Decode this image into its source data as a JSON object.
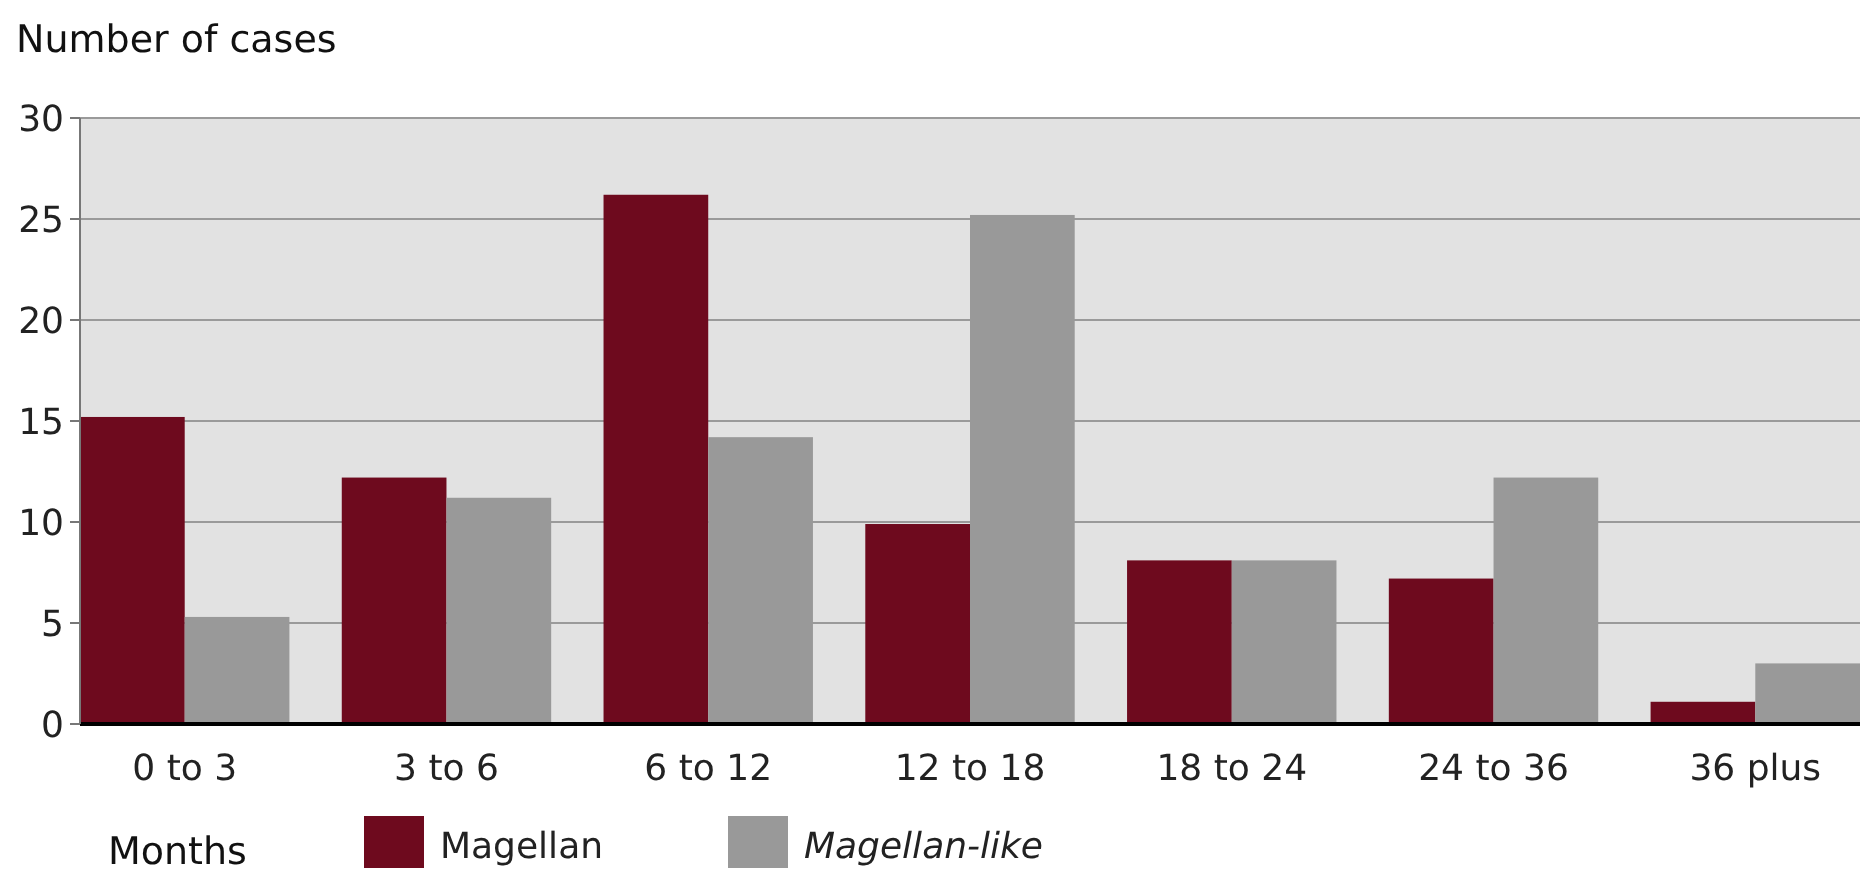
{
  "chart_data": {
    "type": "bar",
    "ylabel": "Number of cases",
    "xlabel": "Months",
    "categories": [
      "0 to 3",
      "3 to 6",
      "6 to 12",
      "12 to 18",
      "18 to 24",
      "24 to 36",
      "36 plus"
    ],
    "series": [
      {
        "name": "Magellan",
        "color": "#6e0a1e",
        "values": [
          15.2,
          12.2,
          26.2,
          9.9,
          8.1,
          7.2,
          1.1
        ]
      },
      {
        "name": "Magellan-like",
        "color": "#999999",
        "values": [
          5.3,
          11.2,
          14.2,
          25.2,
          8.1,
          12.2,
          3.0
        ]
      }
    ],
    "ylim": [
      0,
      30
    ],
    "yticks": [
      0,
      5,
      10,
      15,
      20,
      25,
      30
    ],
    "grid": "y",
    "legend": "bottom"
  }
}
